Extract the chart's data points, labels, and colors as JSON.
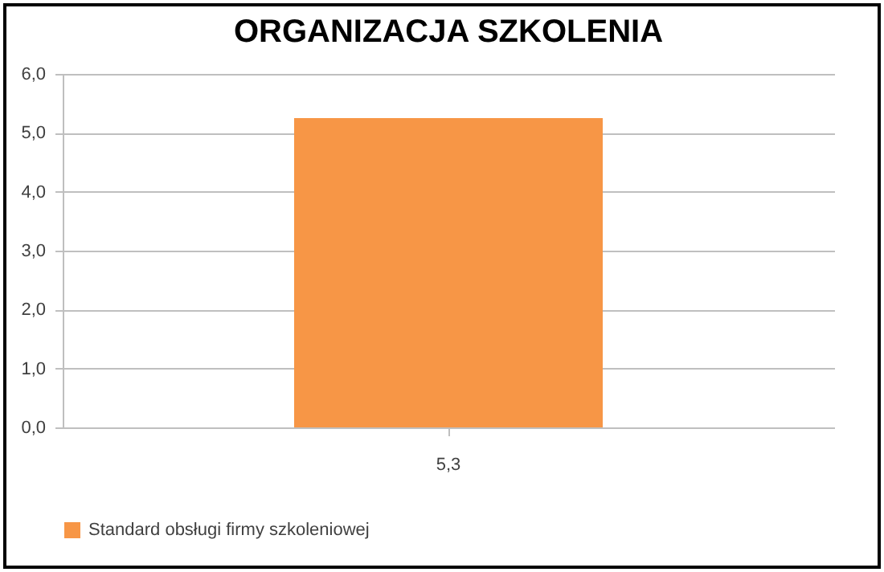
{
  "chart_data": {
    "type": "bar",
    "title": "ORGANIZACJA SZKOLENIA",
    "categories": [
      "5,3"
    ],
    "series": [
      {
        "name": "Standard obsługi firmy szkoleniowej",
        "color": "#f79646",
        "values": [
          5.25
        ]
      }
    ],
    "ylim": [
      0,
      6
    ],
    "yticks": [
      {
        "value": 0,
        "label": "0,0"
      },
      {
        "value": 1,
        "label": "1,0"
      },
      {
        "value": 2,
        "label": "2,0"
      },
      {
        "value": 3,
        "label": "3,0"
      },
      {
        "value": 4,
        "label": "4,0"
      },
      {
        "value": 5,
        "label": "5,0"
      },
      {
        "value": 6,
        "label": "6,0"
      }
    ],
    "grid": "y",
    "legend": "bottom"
  }
}
